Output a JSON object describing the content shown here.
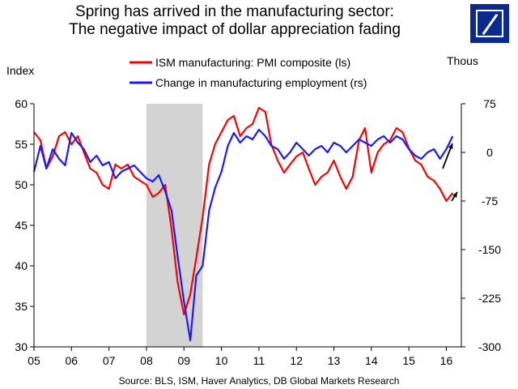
{
  "chart_data": {
    "type": "line",
    "title": "Spring has arrived in the manufacturing sector:",
    "subtitle": "The negative impact of dollar appreciation fading",
    "ylabel_left": "Index",
    "ylabel_right": "Thous",
    "source": "Source: BLS, ISM, Haver Analytics, DB Global Markets Research",
    "x_ticks": [
      "05",
      "06",
      "07",
      "08",
      "09",
      "10",
      "11",
      "12",
      "13",
      "14",
      "15",
      "16"
    ],
    "y_left_ticks": [
      "30",
      "35",
      "40",
      "45",
      "50",
      "55",
      "60"
    ],
    "y_right_ticks": [
      "-300",
      "-225",
      "-150",
      "-75",
      "0",
      "75"
    ],
    "ylim_left": [
      30,
      60
    ],
    "ylim_right": [
      -300,
      75
    ],
    "xlim": [
      2005.0,
      2016.4
    ],
    "grid": false,
    "legend_position": "top",
    "recession_shading": [
      2008.0,
      2009.5
    ],
    "series": [
      {
        "name": "ISM manufacturing: PMI composite (ls)",
        "color": "#ff0000",
        "axis": "left",
        "x": [
          2005.0,
          2005.17,
          2005.33,
          2005.5,
          2005.67,
          2005.83,
          2006.0,
          2006.17,
          2006.33,
          2006.5,
          2006.67,
          2006.83,
          2007.0,
          2007.17,
          2007.33,
          2007.5,
          2007.67,
          2007.83,
          2008.0,
          2008.17,
          2008.33,
          2008.5,
          2008.67,
          2008.83,
          2009.0,
          2009.17,
          2009.33,
          2009.5,
          2009.67,
          2009.83,
          2010.0,
          2010.17,
          2010.33,
          2010.5,
          2010.67,
          2010.83,
          2011.0,
          2011.17,
          2011.33,
          2011.5,
          2011.67,
          2011.83,
          2012.0,
          2012.17,
          2012.33,
          2012.5,
          2012.67,
          2012.83,
          2013.0,
          2013.17,
          2013.33,
          2013.5,
          2013.67,
          2013.83,
          2014.0,
          2014.17,
          2014.33,
          2014.5,
          2014.67,
          2014.83,
          2015.0,
          2015.17,
          2015.33,
          2015.5,
          2015.67,
          2015.83,
          2016.0,
          2016.17
        ],
        "values": [
          56.5,
          55.5,
          52.0,
          53.5,
          56.0,
          56.5,
          55.0,
          56.0,
          54.0,
          52.0,
          51.5,
          50.0,
          49.5,
          52.5,
          52.0,
          52.5,
          51.0,
          50.5,
          50.0,
          48.5,
          49.0,
          50.0,
          44.5,
          38.0,
          34.0,
          36.5,
          41.0,
          46.0,
          52.5,
          55.0,
          56.5,
          58.0,
          58.5,
          56.0,
          57.0,
          57.5,
          59.5,
          59.0,
          55.0,
          53.0,
          51.5,
          52.5,
          53.5,
          54.0,
          52.0,
          50.0,
          51.0,
          51.5,
          53.0,
          51.0,
          49.5,
          51.0,
          55.5,
          57.0,
          51.5,
          54.0,
          55.0,
          55.5,
          57.0,
          56.5,
          54.5,
          53.0,
          52.5,
          51.0,
          50.5,
          49.5,
          48.0,
          49.0
        ]
      },
      {
        "name": "Change in manufacturing employment (rs)",
        "color": "#1a1aff",
        "axis": "right",
        "x": [
          2005.0,
          2005.17,
          2005.33,
          2005.5,
          2005.67,
          2005.83,
          2006.0,
          2006.17,
          2006.33,
          2006.5,
          2006.67,
          2006.83,
          2007.0,
          2007.17,
          2007.33,
          2007.5,
          2007.67,
          2007.83,
          2008.0,
          2008.17,
          2008.33,
          2008.5,
          2008.67,
          2008.83,
          2009.0,
          2009.17,
          2009.33,
          2009.5,
          2009.67,
          2009.83,
          2010.0,
          2010.17,
          2010.33,
          2010.5,
          2010.67,
          2010.83,
          2011.0,
          2011.17,
          2011.33,
          2011.5,
          2011.67,
          2011.83,
          2012.0,
          2012.17,
          2012.33,
          2012.5,
          2012.67,
          2012.83,
          2013.0,
          2013.17,
          2013.33,
          2013.5,
          2013.67,
          2013.83,
          2014.0,
          2014.17,
          2014.33,
          2014.5,
          2014.67,
          2014.83,
          2015.0,
          2015.17,
          2015.33,
          2015.5,
          2015.67,
          2015.83,
          2016.0,
          2016.17
        ],
        "values": [
          -30,
          10,
          -25,
          5,
          -10,
          -20,
          30,
          15,
          5,
          -15,
          -5,
          -20,
          -15,
          -40,
          -30,
          -25,
          -20,
          -30,
          -40,
          -45,
          -35,
          -60,
          -90,
          -160,
          -230,
          -290,
          -190,
          -175,
          -90,
          -55,
          -30,
          10,
          30,
          15,
          25,
          20,
          35,
          25,
          10,
          5,
          -10,
          0,
          15,
          5,
          -5,
          5,
          10,
          0,
          15,
          10,
          0,
          10,
          20,
          15,
          10,
          20,
          25,
          15,
          25,
          20,
          5,
          -5,
          -10,
          0,
          5,
          -10,
          5,
          25
        ]
      }
    ]
  }
}
